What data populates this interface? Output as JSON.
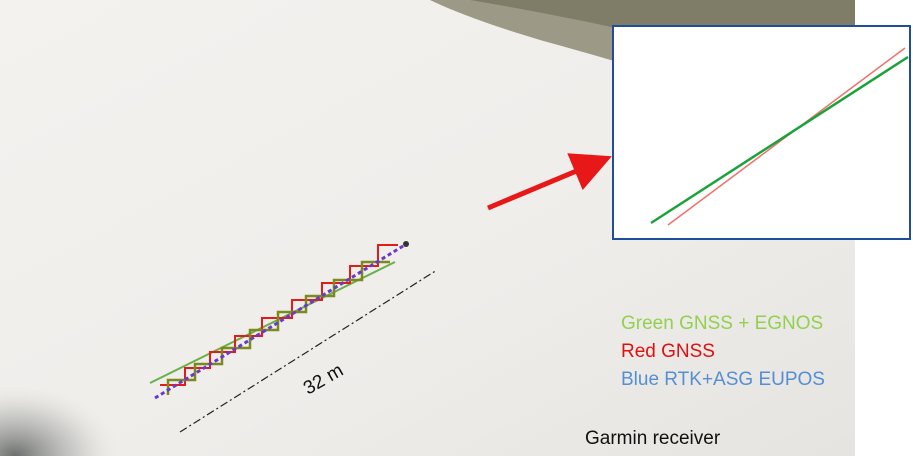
{
  "distance_label": "32 m",
  "legend": [
    "Green GNSS + EGNOS",
    "Red GNSS",
    "Blue RTK+ASG EUPOS"
  ],
  "caption": "Garmin receiver"
}
